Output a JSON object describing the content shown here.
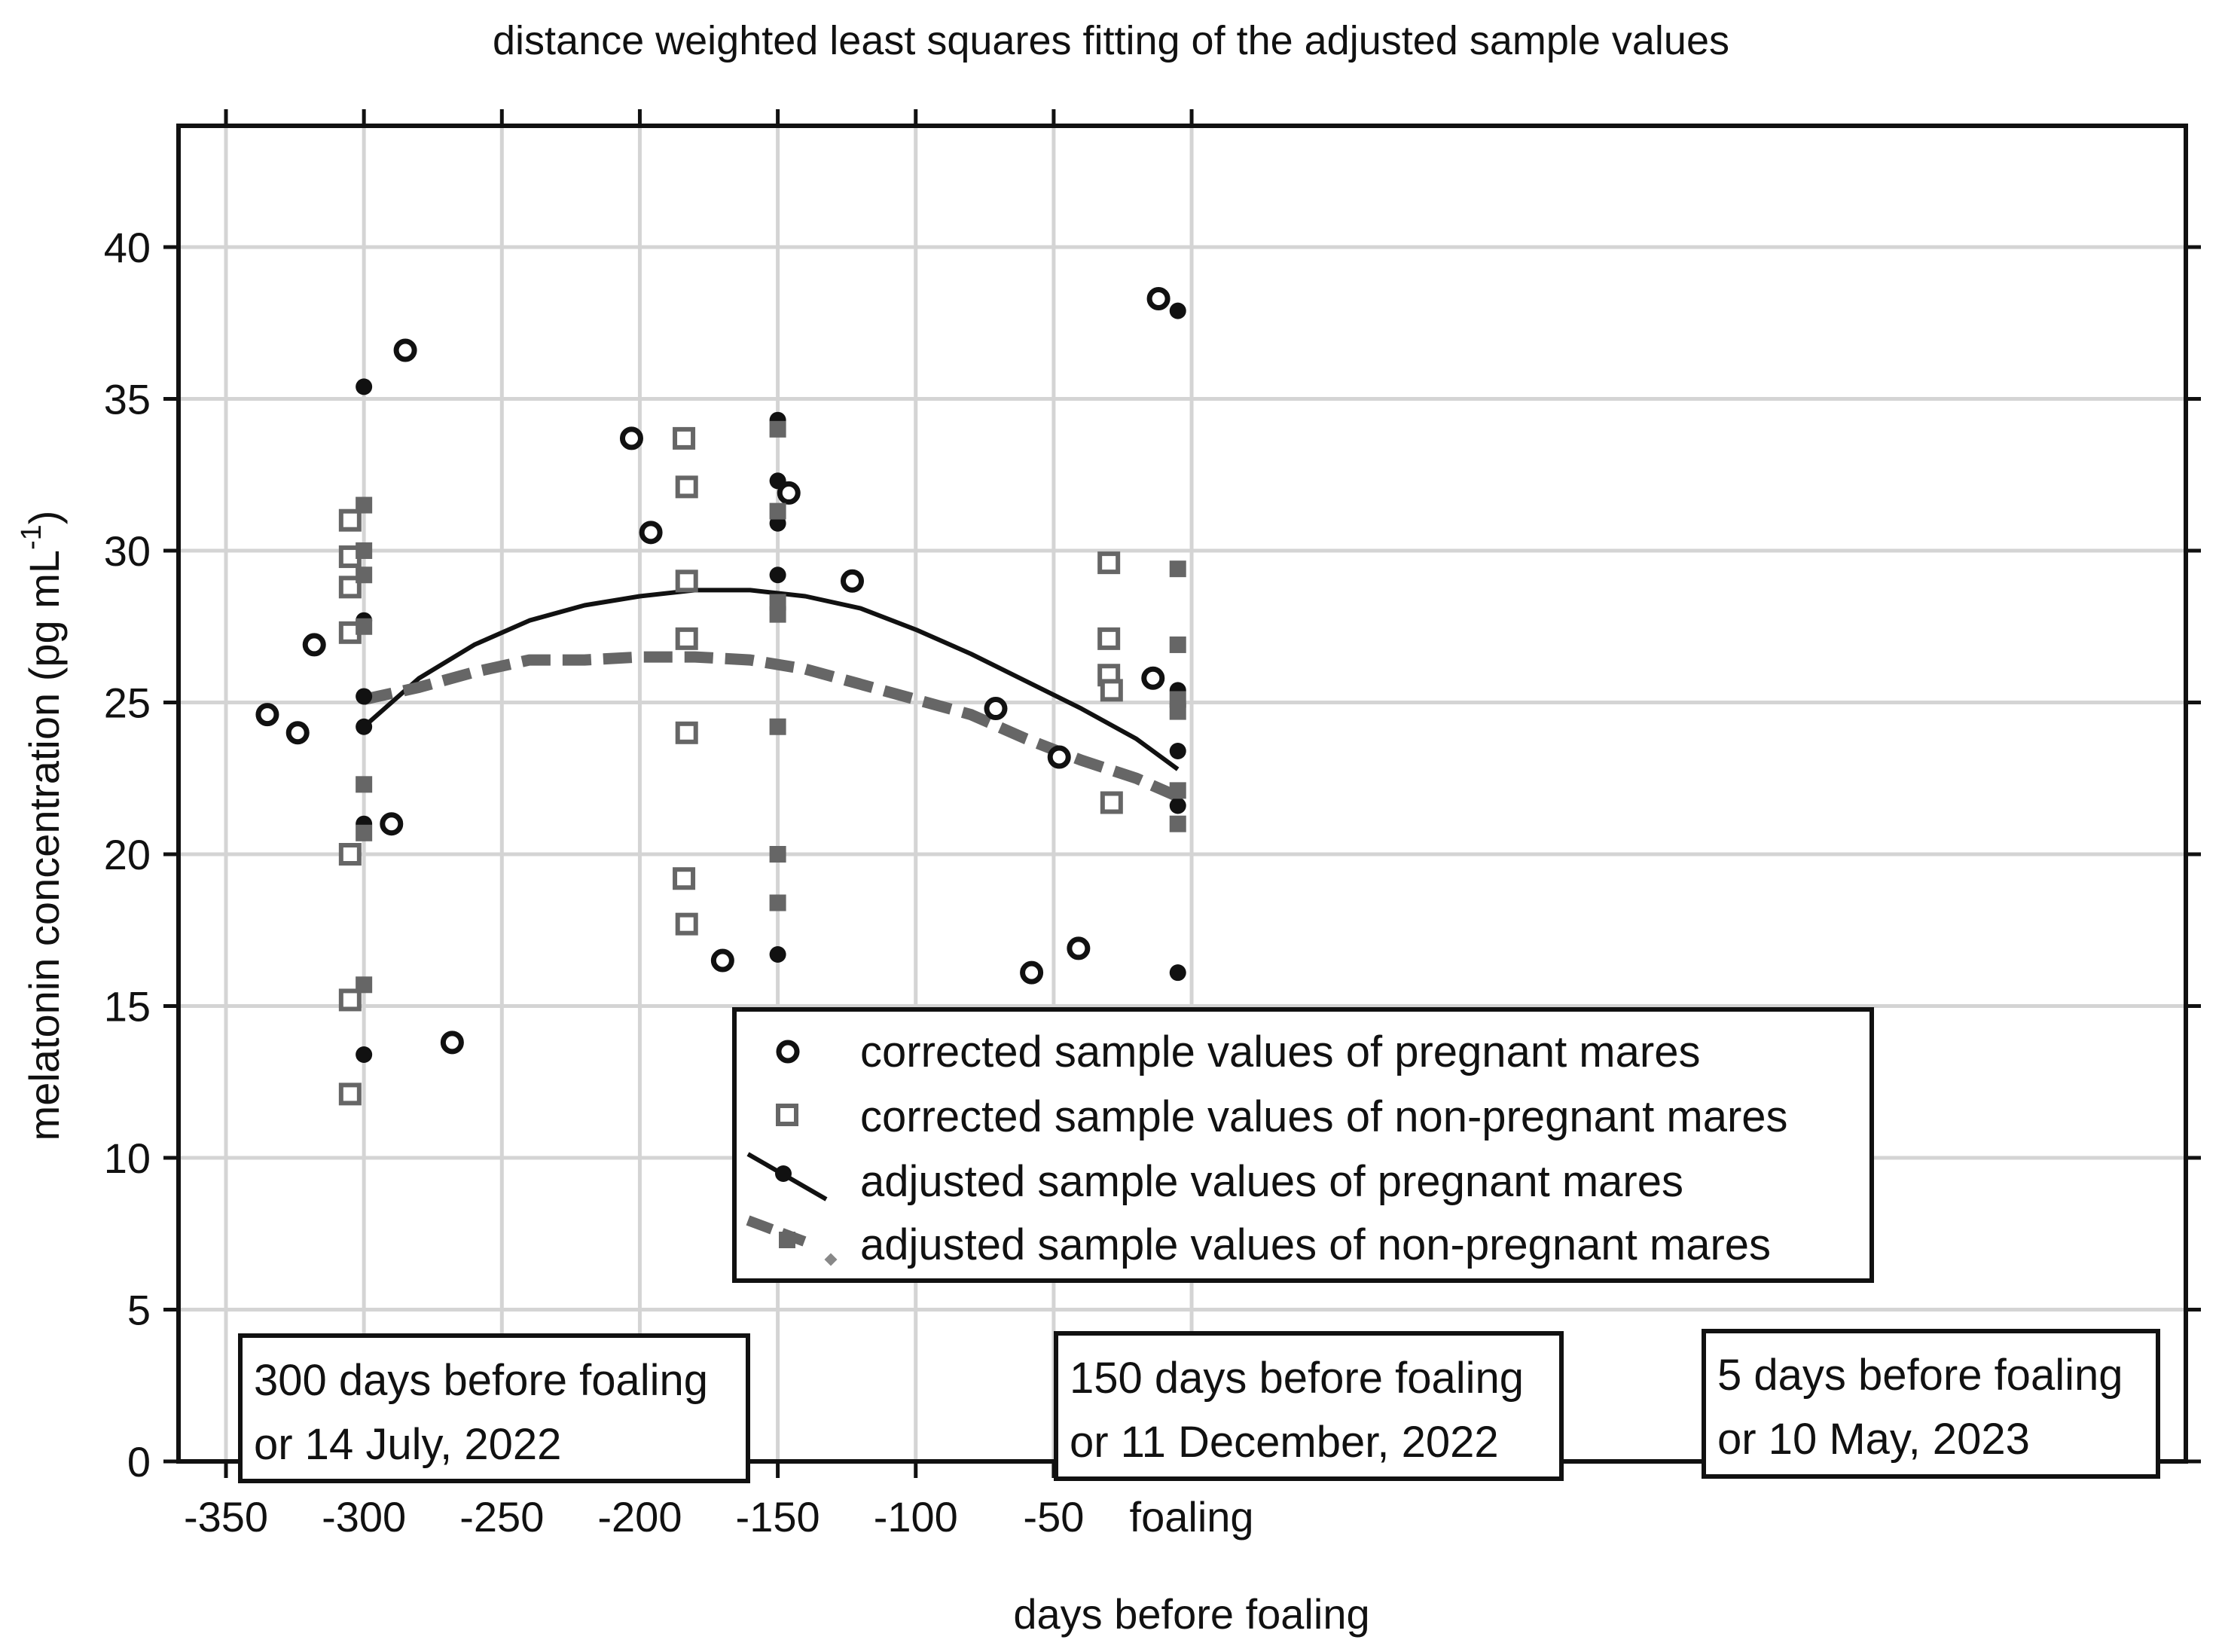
{
  "chart_data": {
    "type": "scatter",
    "title": "distance weighted least squares fitting of the adjusted sample values",
    "xlabel": "days before foaling",
    "ylabel_main": "melatonin concentration (pg mL",
    "ylabel_sup": "-1",
    "ylabel_close": ")",
    "xlim": [
      -360,
      5
    ],
    "ylim": [
      0,
      44
    ],
    "x_ticks": [
      {
        "value": -350,
        "label": "-350"
      },
      {
        "value": -300,
        "label": "-300"
      },
      {
        "value": -250,
        "label": "-250"
      },
      {
        "value": -200,
        "label": "-200"
      },
      {
        "value": -150,
        "label": "-150"
      },
      {
        "value": -100,
        "label": "-100"
      },
      {
        "value": -50,
        "label": "-50"
      },
      {
        "value": 0,
        "label": "foaling"
      }
    ],
    "y_ticks": [
      {
        "value": 0,
        "label": "0"
      },
      {
        "value": 5,
        "label": "5"
      },
      {
        "value": 10,
        "label": "10"
      },
      {
        "value": 15,
        "label": "15"
      },
      {
        "value": 20,
        "label": "20"
      },
      {
        "value": 25,
        "label": "25"
      },
      {
        "value": 30,
        "label": "30"
      },
      {
        "value": 35,
        "label": "35"
      },
      {
        "value": 40,
        "label": "40"
      }
    ],
    "grid": true,
    "legend_position": "center-bottom",
    "series": [
      {
        "name": "corrected sample values of pregnant mares",
        "marker": "open-circle",
        "color": "#111111",
        "points": [
          [
            -335,
            24.6
          ],
          [
            -324,
            24.0
          ],
          [
            -318,
            26.9
          ],
          [
            -290,
            21.0
          ],
          [
            -285,
            36.6
          ],
          [
            -268,
            13.8
          ],
          [
            -203,
            33.7
          ],
          [
            -196,
            30.6
          ],
          [
            -170,
            16.5
          ],
          [
            -146,
            31.9
          ],
          [
            -123,
            29.0
          ],
          [
            -71,
            24.8
          ],
          [
            -58,
            16.1
          ],
          [
            -48,
            23.2
          ],
          [
            -41,
            16.9
          ],
          [
            -14,
            25.8
          ],
          [
            -12,
            38.3
          ]
        ]
      },
      {
        "name": "corrected sample values of non-pregnant mares",
        "marker": "open-square",
        "color": "#666666",
        "points": [
          [
            -305,
            31.0
          ],
          [
            -305,
            29.8
          ],
          [
            -305,
            28.8
          ],
          [
            -305,
            27.3
          ],
          [
            -305,
            20.0
          ],
          [
            -305,
            15.2
          ],
          [
            -305,
            12.1
          ],
          [
            -184,
            33.7
          ],
          [
            -183,
            32.1
          ],
          [
            -183,
            29.0
          ],
          [
            -183,
            27.1
          ],
          [
            -183,
            24.0
          ],
          [
            -184,
            19.2
          ],
          [
            -183,
            17.7
          ],
          [
            -30,
            29.6
          ],
          [
            -30,
            27.1
          ],
          [
            -30,
            25.9
          ],
          [
            -29,
            25.4
          ],
          [
            -29,
            21.7
          ],
          [
            -30,
            14.4
          ],
          [
            -29,
            13.0
          ]
        ]
      },
      {
        "name": "adjusted sample values of pregnant mares",
        "marker": "filled-circle",
        "line": "solid",
        "color": "#111111",
        "points": [
          [
            -300,
            35.4
          ],
          [
            -300,
            27.7
          ],
          [
            -300,
            25.2
          ],
          [
            -300,
            24.2
          ],
          [
            -300,
            21.0
          ],
          [
            -300,
            13.4
          ],
          [
            -150,
            34.3
          ],
          [
            -150,
            32.3
          ],
          [
            -150,
            30.9
          ],
          [
            -150,
            29.2
          ],
          [
            -150,
            16.7
          ],
          [
            -5,
            37.9
          ],
          [
            -5,
            25.4
          ],
          [
            -5,
            23.4
          ],
          [
            -5,
            21.6
          ],
          [
            -5,
            16.1
          ],
          [
            -5,
            14.6
          ]
        ],
        "fit_x": [
          -300,
          -280,
          -260,
          -240,
          -220,
          -200,
          -180,
          -160,
          -140,
          -120,
          -100,
          -80,
          -60,
          -40,
          -20,
          -5
        ],
        "fit_y": [
          24.2,
          25.8,
          26.9,
          27.7,
          28.2,
          28.5,
          28.7,
          28.7,
          28.5,
          28.1,
          27.4,
          26.6,
          25.7,
          24.8,
          23.8,
          22.8
        ]
      },
      {
        "name": "adjusted sample values of non-pregnant mares",
        "marker": "filled-square",
        "line": "dashed",
        "color": "#666666",
        "points": [
          [
            -300,
            31.5
          ],
          [
            -300,
            30.0
          ],
          [
            -300,
            29.2
          ],
          [
            -300,
            27.5
          ],
          [
            -300,
            22.3
          ],
          [
            -300,
            20.7
          ],
          [
            -300,
            15.7
          ],
          [
            -150,
            34.0
          ],
          [
            -150,
            31.3
          ],
          [
            -150,
            28.3
          ],
          [
            -150,
            27.9
          ],
          [
            -150,
            24.2
          ],
          [
            -150,
            20.0
          ],
          [
            -150,
            18.4
          ],
          [
            -5,
            29.4
          ],
          [
            -5,
            26.9
          ],
          [
            -5,
            25.1
          ],
          [
            -5,
            24.7
          ],
          [
            -5,
            22.1
          ],
          [
            -5,
            21.0
          ],
          [
            -5,
            13.9
          ],
          [
            -5,
            12.4
          ]
        ],
        "fit_x": [
          -300,
          -280,
          -260,
          -240,
          -220,
          -200,
          -180,
          -160,
          -140,
          -120,
          -100,
          -80,
          -60,
          -40,
          -20,
          -5
        ],
        "fit_y": [
          25.1,
          25.5,
          26.0,
          26.4,
          26.4,
          26.5,
          26.5,
          26.4,
          26.1,
          25.6,
          25.1,
          24.6,
          23.8,
          23.1,
          22.5,
          21.9
        ]
      }
    ],
    "annotations": [
      {
        "line1": "300 days before foaling",
        "line2": "or 14 July, 2022"
      },
      {
        "line1": "150 days before foaling",
        "line2": "or 11 December, 2022"
      },
      {
        "line1": "5 days before foaling",
        "line2": "or 10 May, 2023"
      }
    ]
  }
}
